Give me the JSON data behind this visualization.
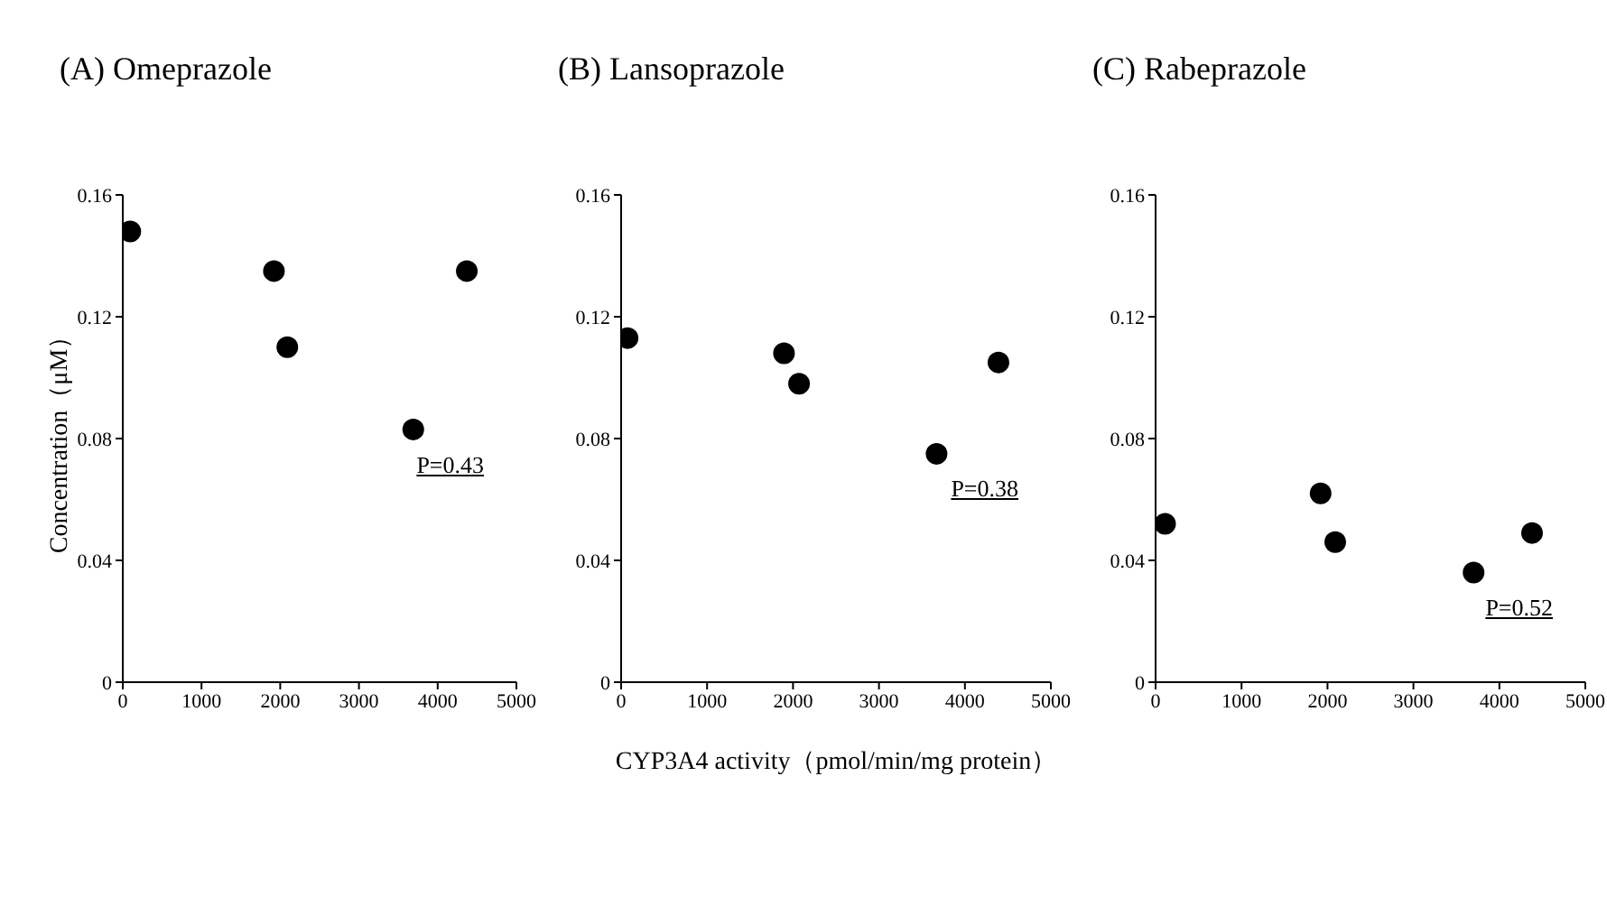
{
  "chart_data": [
    {
      "type": "scatter",
      "title": "(A) Omeprazole",
      "ylabel": "Concentration（μM）",
      "x": [
        95,
        1920,
        2090,
        3690,
        4370
      ],
      "series": [
        {
          "color": "#000000",
          "values": [
            0.148,
            0.135,
            0.11,
            0.083,
            0.135
          ]
        }
      ],
      "xlim": [
        0,
        5000
      ],
      "xticks": [
        0,
        1000,
        2000,
        3000,
        4000,
        5000
      ],
      "ylim": [
        0,
        0.16
      ],
      "yticks": [
        0,
        0.04,
        0.08,
        0.12,
        0.16
      ],
      "marker": "circle",
      "grid": false,
      "legend": false,
      "annotations": [
        "P=0.43"
      ]
    },
    {
      "type": "scatter",
      "title": "(B) Lansoprazole",
      "xlabel": "CYP3A4 activity（pmol/min/mg protein）",
      "x": [
        75,
        1895,
        2070,
        3670,
        4390
      ],
      "series": [
        {
          "color": "#000000",
          "values": [
            0.113,
            0.108,
            0.098,
            0.075,
            0.105
          ]
        }
      ],
      "xlim": [
        0,
        5000
      ],
      "xticks": [
        0,
        1000,
        2000,
        3000,
        4000,
        5000
      ],
      "ylim": [
        0,
        0.16
      ],
      "yticks": [
        0,
        0.04,
        0.08,
        0.12,
        0.16
      ],
      "marker": "circle",
      "grid": false,
      "legend": false,
      "annotations": [
        "P=0.38"
      ]
    },
    {
      "type": "scatter",
      "title": "(C) Rabeprazole",
      "x": [
        110,
        1920,
        2090,
        3700,
        4380
      ],
      "series": [
        {
          "color": "#000000",
          "values": [
            0.052,
            0.062,
            0.046,
            0.036,
            0.049
          ]
        }
      ],
      "xlim": [
        0,
        5000
      ],
      "xticks": [
        0,
        1000,
        2000,
        3000,
        4000,
        5000
      ],
      "ylim": [
        0,
        0.16
      ],
      "yticks": [
        0,
        0.04,
        0.08,
        0.12,
        0.16
      ],
      "marker": "circle",
      "grid": false,
      "legend": false,
      "annotations": [
        "P=0.52"
      ]
    }
  ]
}
